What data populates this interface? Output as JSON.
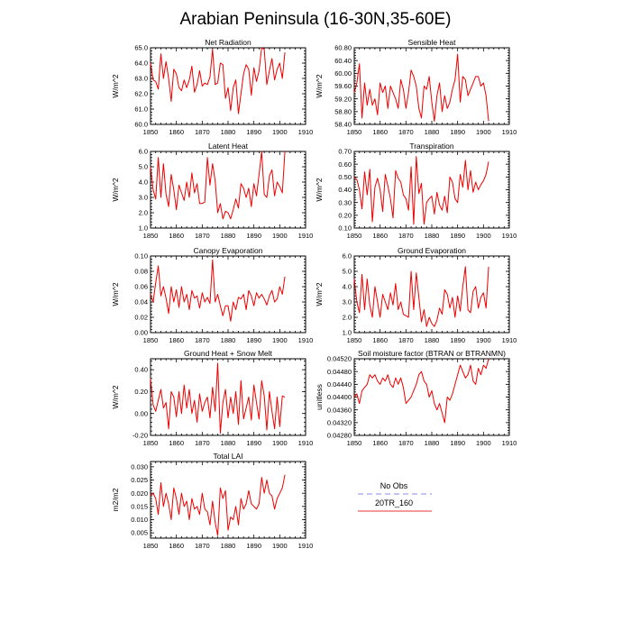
{
  "figure_title": "Arabian Peninsula (16-30N,35-60E)",
  "legend": {
    "entries": [
      {
        "label": "No Obs",
        "color": "#8888ee",
        "dashed": true
      },
      {
        "label": "20TR_160",
        "color": "#ee3333",
        "dashed": false
      }
    ]
  },
  "chart_data": [
    {
      "type": "line",
      "title": "Net Radiation",
      "ylabel": "W/m^2",
      "xlim": [
        1850,
        1910
      ],
      "xticks": [
        "1850",
        "1860",
        "1870",
        "1880",
        "1890",
        "1900",
        "1910"
      ],
      "ylim": [
        60.0,
        65.0
      ],
      "yticks": [
        "60.0",
        "61.0",
        "62.0",
        "63.0",
        "64.0",
        "65.0"
      ],
      "series": [
        {
          "color": "#ee0000",
          "x_start": 1850,
          "values": [
            64.0,
            62.9,
            62.8,
            62.3,
            64.6,
            63.0,
            64.1,
            63.0,
            61.5,
            63.6,
            63.3,
            62.4,
            62.2,
            62.9,
            62.4,
            62.9,
            63.8,
            62.1,
            62.6,
            63.5,
            62.5,
            62.7,
            62.6,
            63.1,
            64.9,
            62.6,
            62.7,
            64.0,
            63.9,
            61.7,
            62.4,
            60.9,
            62.4,
            62.9,
            60.7,
            62.0,
            63.3,
            63.9,
            63.6,
            61.9,
            63.7,
            62.8,
            63.5,
            65.0,
            64.9,
            62.6,
            63.5,
            64.3,
            62.9,
            63.6,
            64.0,
            63.0,
            64.7
          ]
        }
      ]
    },
    {
      "type": "line",
      "title": "Sensible Heat",
      "ylabel": "W/m^2",
      "xlim": [
        1850,
        1910
      ],
      "xticks": [
        "1850",
        "1860",
        "1870",
        "1880",
        "1890",
        "1900",
        "1910"
      ],
      "ylim": [
        58.4,
        60.8
      ],
      "yticks": [
        "58.40",
        "58.80",
        "59.20",
        "59.60",
        "60.00",
        "60.40",
        "60.80"
      ],
      "series": [
        {
          "color": "#ee0000",
          "x_start": 1850,
          "values": [
            59.4,
            59.7,
            60.3,
            58.6,
            59.7,
            59.0,
            59.5,
            59.0,
            59.2,
            58.7,
            59.7,
            59.4,
            59.6,
            58.9,
            59.6,
            59.4,
            59.2,
            58.9,
            59.8,
            59.5,
            58.9,
            59.4,
            60.1,
            59.9,
            59.6,
            58.9,
            58.6,
            59.6,
            59.5,
            59.9,
            59.1,
            58.5,
            59.3,
            59.7,
            58.8,
            59.3,
            58.9,
            59.1,
            59.5,
            59.8,
            60.6,
            59.1,
            59.9,
            59.8,
            59.3,
            59.5,
            59.7,
            59.9,
            59.9,
            59.6,
            59.7,
            59.3,
            58.5
          ]
        }
      ]
    },
    {
      "type": "line",
      "title": "Latent Heat",
      "ylabel": "W/m^2",
      "xlim": [
        1850,
        1910
      ],
      "xticks": [
        "1850",
        "1860",
        "1870",
        "1880",
        "1890",
        "1900",
        "1910"
      ],
      "ylim": [
        1.0,
        6.0
      ],
      "yticks": [
        "1.0",
        "2.0",
        "3.0",
        "4.0",
        "5.0",
        "6.0"
      ],
      "series": [
        {
          "color": "#ee0000",
          "x_start": 1850,
          "values": [
            5.0,
            3.5,
            2.9,
            5.6,
            3.0,
            5.2,
            3.2,
            2.4,
            4.5,
            3.5,
            2.2,
            3.8,
            3.3,
            2.8,
            4.0,
            3.0,
            4.6,
            3.3,
            3.9,
            2.6,
            2.6,
            2.7,
            5.6,
            3.8,
            5.2,
            4.1,
            2.0,
            2.6,
            1.6,
            2.1,
            2.0,
            1.6,
            2.2,
            2.9,
            2.3,
            3.9,
            3.6,
            3.0,
            3.6,
            2.4,
            3.9,
            3.1,
            4.5,
            6.0,
            3.2,
            3.0,
            4.4,
            4.8,
            3.1,
            4.0,
            3.7,
            3.3,
            6.0
          ]
        }
      ]
    },
    {
      "type": "line",
      "title": "Transpiration",
      "ylabel": "W/m^2",
      "xlim": [
        1850,
        1910
      ],
      "xticks": [
        "1850",
        "1860",
        "1870",
        "1880",
        "1890",
        "1900",
        "1910"
      ],
      "ylim": [
        0.1,
        0.7
      ],
      "yticks": [
        "0.10",
        "0.20",
        "0.30",
        "0.40",
        "0.50",
        "0.60",
        "0.70"
      ],
      "series": [
        {
          "color": "#ee0000",
          "x_start": 1850,
          "values": [
            0.5,
            0.48,
            0.4,
            0.25,
            0.54,
            0.36,
            0.56,
            0.15,
            0.42,
            0.49,
            0.4,
            0.23,
            0.52,
            0.43,
            0.33,
            0.18,
            0.55,
            0.49,
            0.46,
            0.36,
            0.33,
            0.24,
            0.58,
            0.13,
            0.66,
            0.37,
            0.45,
            0.13,
            0.3,
            0.33,
            0.35,
            0.21,
            0.38,
            0.28,
            0.24,
            0.35,
            0.22,
            0.5,
            0.46,
            0.33,
            0.3,
            0.52,
            0.42,
            0.63,
            0.4,
            0.55,
            0.38,
            0.46,
            0.4,
            0.44,
            0.47,
            0.52,
            0.62
          ]
        }
      ]
    },
    {
      "type": "line",
      "title": "Canopy Evaporation",
      "ylabel": "W/m^2",
      "xlim": [
        1850,
        1910
      ],
      "xticks": [
        "1850",
        "1860",
        "1870",
        "1880",
        "1890",
        "1900",
        "1910"
      ],
      "ylim": [
        0.0,
        0.1
      ],
      "yticks": [
        "0.00",
        "0.02",
        "0.04",
        "0.06",
        "0.08",
        "0.10"
      ],
      "series": [
        {
          "color": "#ee0000",
          "x_start": 1850,
          "values": [
            0.05,
            0.04,
            0.065,
            0.087,
            0.048,
            0.06,
            0.045,
            0.025,
            0.06,
            0.04,
            0.056,
            0.033,
            0.06,
            0.04,
            0.05,
            0.03,
            0.055,
            0.045,
            0.048,
            0.032,
            0.052,
            0.04,
            0.046,
            0.038,
            0.095,
            0.04,
            0.05,
            0.035,
            0.022,
            0.035,
            0.035,
            0.015,
            0.04,
            0.03,
            0.046,
            0.044,
            0.05,
            0.03,
            0.055,
            0.048,
            0.035,
            0.052,
            0.045,
            0.05,
            0.044,
            0.036,
            0.048,
            0.055,
            0.04,
            0.044,
            0.06,
            0.05,
            0.073
          ]
        }
      ]
    },
    {
      "type": "line",
      "title": "Ground Evaporation",
      "ylabel": "W/m^2",
      "xlim": [
        1850,
        1910
      ],
      "xticks": [
        "1850",
        "1860",
        "1870",
        "1880",
        "1890",
        "1900",
        "1910"
      ],
      "ylim": [
        1.0,
        6.0
      ],
      "yticks": [
        "1.0",
        "2.0",
        "3.0",
        "4.0",
        "5.0",
        "6.0"
      ],
      "series": [
        {
          "color": "#ee0000",
          "x_start": 1850,
          "values": [
            4.5,
            3.0,
            2.3,
            4.8,
            2.5,
            4.5,
            2.8,
            2.0,
            4.0,
            3.0,
            2.0,
            3.5,
            3.0,
            2.5,
            3.6,
            2.8,
            4.2,
            2.5,
            3.0,
            2.2,
            2.1,
            2.0,
            5.0,
            2.5,
            4.9,
            3.3,
            1.7,
            2.5,
            1.4,
            2.0,
            1.6,
            1.4,
            1.8,
            2.6,
            2.2,
            3.8,
            3.5,
            2.6,
            3.3,
            2.0,
            3.4,
            2.4,
            4.0,
            5.3,
            2.5,
            2.3,
            3.7,
            4.0,
            2.6,
            3.3,
            3.6,
            2.6,
            5.3
          ]
        }
      ]
    },
    {
      "type": "line",
      "title": "Ground Heat + Snow Melt",
      "ylabel": "W/m^2",
      "xlim": [
        1850,
        1910
      ],
      "xticks": [
        "1850",
        "1860",
        "1870",
        "1880",
        "1890",
        "1900",
        "1910"
      ],
      "ylim": [
        -0.2,
        0.5
      ],
      "yticks": [
        "-0.20",
        "0.00",
        "0.20",
        "0.40"
      ],
      "series": [
        {
          "color": "#ee0000",
          "x_start": 1850,
          "values": [
            0.32,
            0.08,
            0.02,
            0.12,
            0.22,
            0.05,
            0.1,
            -0.14,
            0.2,
            0.15,
            -0.03,
            0.2,
            0.0,
            0.26,
            0.05,
            0.22,
            0.0,
            0.12,
            -0.08,
            0.18,
            0.02,
            0.1,
            0.15,
            -0.04,
            0.24,
            0.02,
            0.46,
            -0.18,
            0.1,
            0.22,
            -0.04,
            0.15,
            0.0,
            0.2,
            -0.1,
            0.3,
            -0.05,
            0.05,
            0.15,
            -0.06,
            0.26,
            0.1,
            -0.05,
            0.3,
            0.16,
            -0.15,
            0.2,
            0.02,
            -0.14,
            0.15,
            -0.12,
            0.16,
            0.15
          ]
        }
      ]
    },
    {
      "type": "line",
      "title": "Soil moisture factor (BTRAN or BTRANMN)",
      "ylabel": "unitless",
      "xlim": [
        1850,
        1910
      ],
      "xticks": [
        "1850",
        "1860",
        "1870",
        "1880",
        "1890",
        "1900",
        "1910"
      ],
      "ylim": [
        0.0428,
        0.0452
      ],
      "yticks": [
        "0.04280",
        "0.04320",
        "0.04360",
        "0.04400",
        "0.04440",
        "0.04480",
        "0.04520"
      ],
      "series": [
        {
          "color": "#ee0000",
          "x_start": 1850,
          "values": [
            0.044,
            0.0441,
            0.0438,
            0.0442,
            0.0443,
            0.0444,
            0.0447,
            0.0446,
            0.0447,
            0.0445,
            0.0444,
            0.0446,
            0.0445,
            0.0447,
            0.0444,
            0.0443,
            0.0446,
            0.0444,
            0.0446,
            0.0443,
            0.0438,
            0.0439,
            0.044,
            0.0442,
            0.0444,
            0.0447,
            0.0448,
            0.0445,
            0.0444,
            0.044,
            0.0442,
            0.0438,
            0.0436,
            0.0438,
            0.0435,
            0.0432,
            0.044,
            0.0439,
            0.0441,
            0.0444,
            0.0447,
            0.045,
            0.0448,
            0.0446,
            0.0447,
            0.045,
            0.0445,
            0.0444,
            0.0449,
            0.0447,
            0.045,
            0.0449,
            0.0452
          ]
        }
      ]
    },
    {
      "type": "line",
      "title": "Total LAI",
      "ylabel": "m2/m2",
      "xlim": [
        1850,
        1910
      ],
      "xticks": [
        "1850",
        "1860",
        "1870",
        "1880",
        "1890",
        "1900",
        "1910"
      ],
      "ylim": [
        0.003,
        0.032
      ],
      "yticks": [
        "0.005",
        "0.010",
        "0.015",
        "0.020",
        "0.025",
        "0.030"
      ],
      "series": [
        {
          "color": "#ee0000",
          "x_start": 1850,
          "values": [
            0.019,
            0.02,
            0.018,
            0.012,
            0.024,
            0.015,
            0.02,
            0.016,
            0.01,
            0.022,
            0.018,
            0.012,
            0.02,
            0.015,
            0.017,
            0.01,
            0.018,
            0.014,
            0.015,
            0.012,
            0.02,
            0.014,
            0.013,
            0.008,
            0.017,
            0.009,
            0.004,
            0.022,
            0.018,
            0.021,
            0.006,
            0.011,
            0.01,
            0.015,
            0.008,
            0.018,
            0.014,
            0.016,
            0.021,
            0.016,
            0.015,
            0.014,
            0.016,
            0.026,
            0.02,
            0.025,
            0.02,
            0.019,
            0.014,
            0.018,
            0.02,
            0.022,
            0.027
          ]
        }
      ]
    }
  ]
}
